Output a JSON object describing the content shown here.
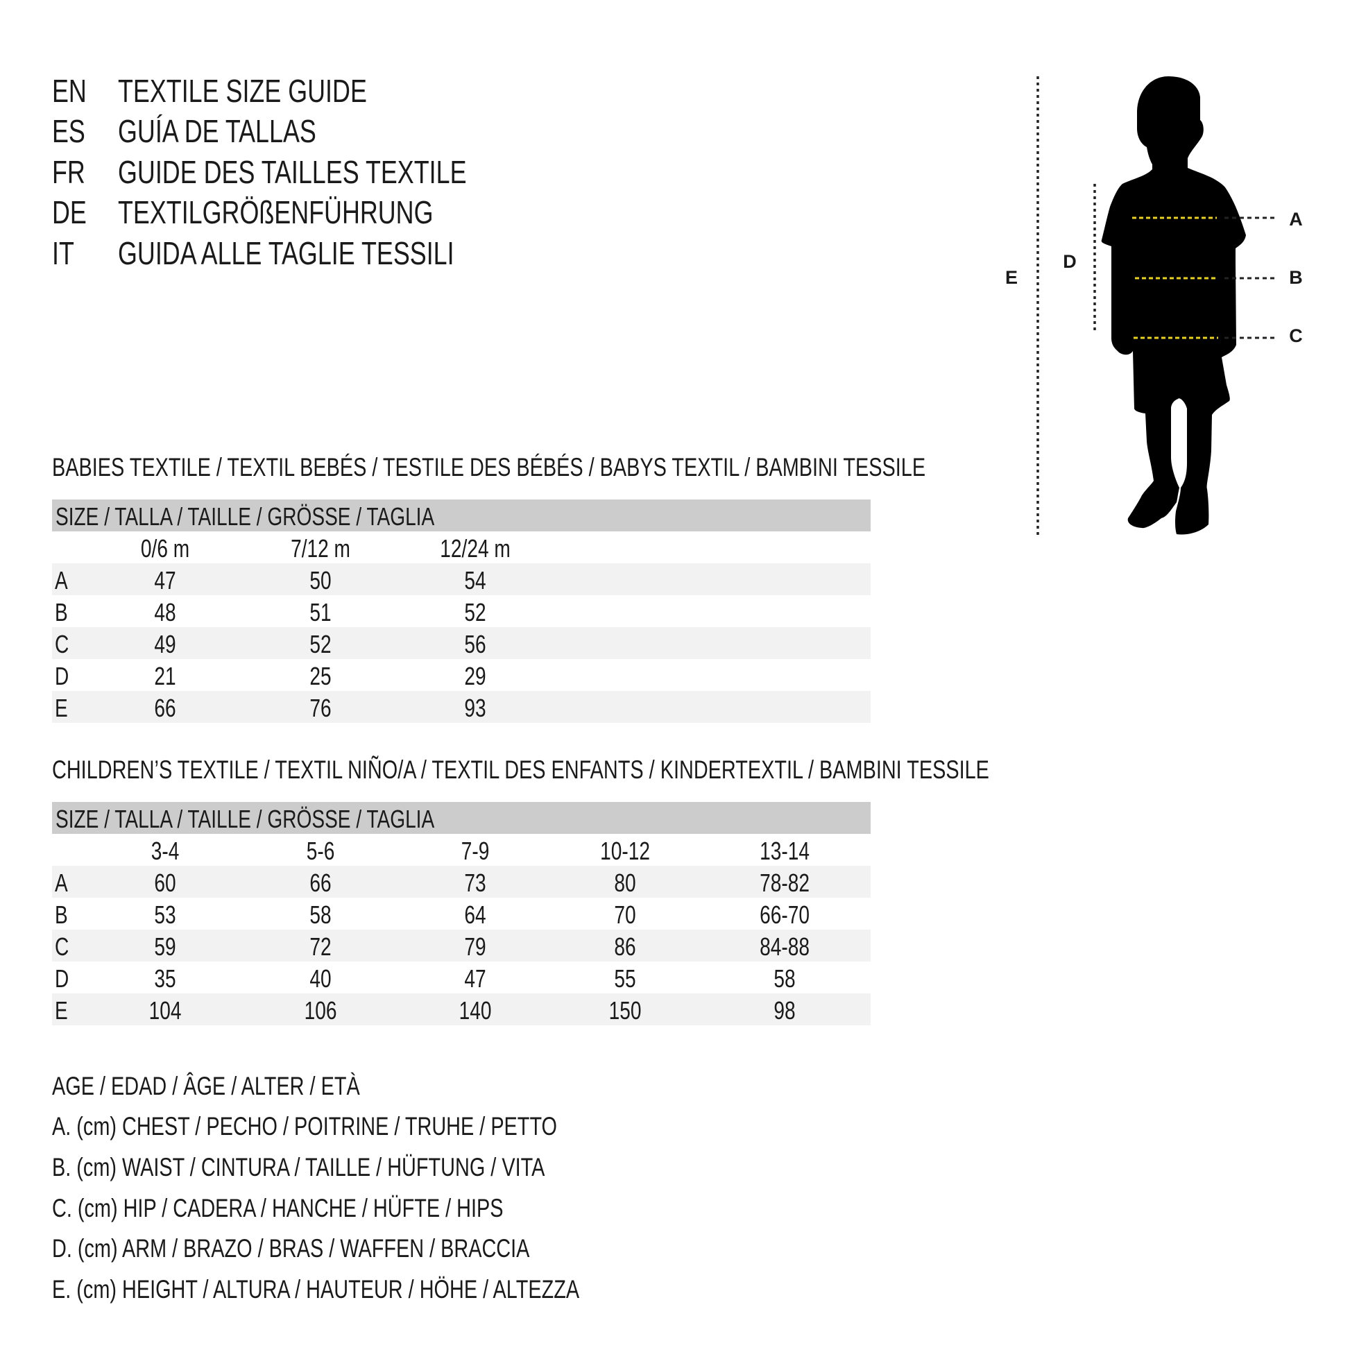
{
  "title_lines": [
    {
      "code": "EN",
      "text": "TEXTILE SIZE GUIDE"
    },
    {
      "code": "ES",
      "text": "GUÍA DE TALLAS"
    },
    {
      "code": "FR",
      "text": "GUIDE DES TAILLES TEXTILE"
    },
    {
      "code": "DE",
      "text": "TEXTILGRÖßENFÜHRUNG"
    },
    {
      "code": "IT",
      "text": "GUIDA ALLE TAGLIE TESSILI"
    }
  ],
  "babies": {
    "heading": "BABIES TEXTILE / TEXTIL BEBÉS / TESTILE DES BÉBÉS / BABYS TEXTIL / BAMBINI TESSILE",
    "size_header": "SIZE / TALLA / TAILLE / GRÖSSE / TAGLIA",
    "columns": [
      "0/6 m",
      "7/12 m",
      "12/24 m"
    ],
    "rows": [
      {
        "label": "A",
        "values": [
          "47",
          "50",
          "54"
        ]
      },
      {
        "label": "B",
        "values": [
          "48",
          "51",
          "52"
        ]
      },
      {
        "label": "C",
        "values": [
          "49",
          "52",
          "56"
        ]
      },
      {
        "label": "D",
        "values": [
          "21",
          "25",
          "29"
        ]
      },
      {
        "label": "E",
        "values": [
          "66",
          "76",
          "93"
        ]
      }
    ]
  },
  "children": {
    "heading": "CHILDREN’S TEXTILE / TEXTIL NIÑO/A / TEXTIL DES ENFANTS / KINDERTEXTIL / BAMBINI TESSILE",
    "size_header": "SIZE / TALLA / TAILLE / GRÖSSE / TAGLIA",
    "columns": [
      "3-4",
      "5-6",
      "7-9",
      "10-12",
      "13-14"
    ],
    "rows": [
      {
        "label": "A",
        "values": [
          "60",
          "66",
          "73",
          "80",
          "78-82"
        ]
      },
      {
        "label": "B",
        "values": [
          "53",
          "58",
          "64",
          "70",
          "66-70"
        ]
      },
      {
        "label": "C",
        "values": [
          "59",
          "72",
          "79",
          "86",
          "84-88"
        ]
      },
      {
        "label": "D",
        "values": [
          "35",
          "40",
          "47",
          "55",
          "58"
        ]
      },
      {
        "label": "E",
        "values": [
          "104",
          "106",
          "140",
          "150",
          "98"
        ]
      }
    ]
  },
  "legend": [
    "AGE / EDAD / ÂGE / ALTER / ETÀ",
    "A. (cm) CHEST / PECHO / POITRINE / TRUHE / PETTO",
    "B. (cm) WAIST / CINTURA / TAILLE / HÜFTUNG / VITA",
    "C. (cm) HIP / CADERA / HANCHE / HÜFTE / HIPS",
    "D. (cm) ARM / BRAZO / BRAS / WAFFEN / BRACCIA",
    "E. (cm) HEIGHT / ALTURA / HAUTEUR / HÖHE / ALTEZZA"
  ],
  "figure": {
    "labels": {
      "A": "A",
      "B": "B",
      "C": "C",
      "D": "D",
      "E": "E"
    },
    "icon": "child-silhouette-icon",
    "colors": {
      "silhouette": "#000000",
      "measure_line": "#e8d21e",
      "guide_line": "#222222"
    }
  }
}
